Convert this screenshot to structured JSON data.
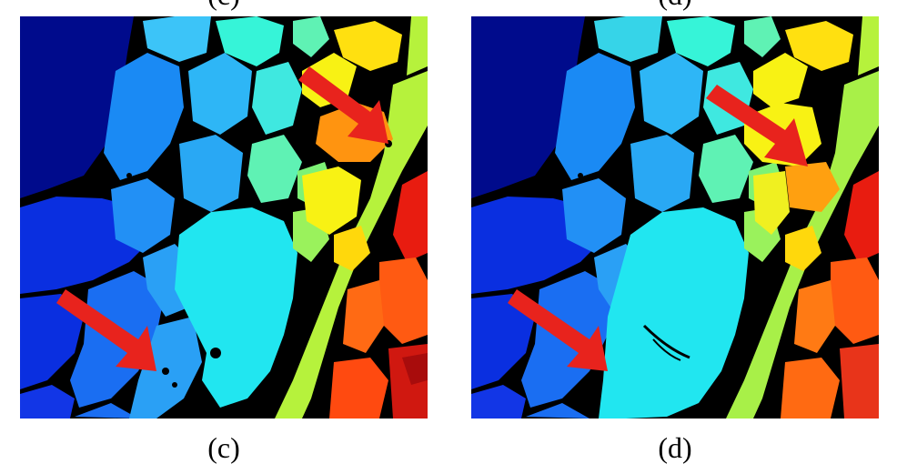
{
  "panels": [
    {
      "caption": "(c)"
    },
    {
      "caption": "(d)"
    }
  ],
  "top_labels": [
    "(c)",
    "(d)"
  ],
  "colors": {
    "boundary": "#000000",
    "arrow": "#e8231d",
    "navy": "#000b8c",
    "deep_blue": "#0a2fe0",
    "blue": "#1a6ef2",
    "sky": "#2aa0f5",
    "light_blue": "#3cc4f8",
    "cyan": "#21e6f0",
    "aqua": "#36f4d8",
    "mint": "#5ff2b4",
    "green": "#7df276",
    "lime": "#b6f23c",
    "yellow": "#f8f214",
    "gold": "#ffc80c",
    "orange": "#ff9410",
    "red_orange": "#ff5a12",
    "red": "#e81c10",
    "dark_red": "#a80c0c"
  },
  "arrows": [
    "red-arrow",
    "red-arrow"
  ]
}
